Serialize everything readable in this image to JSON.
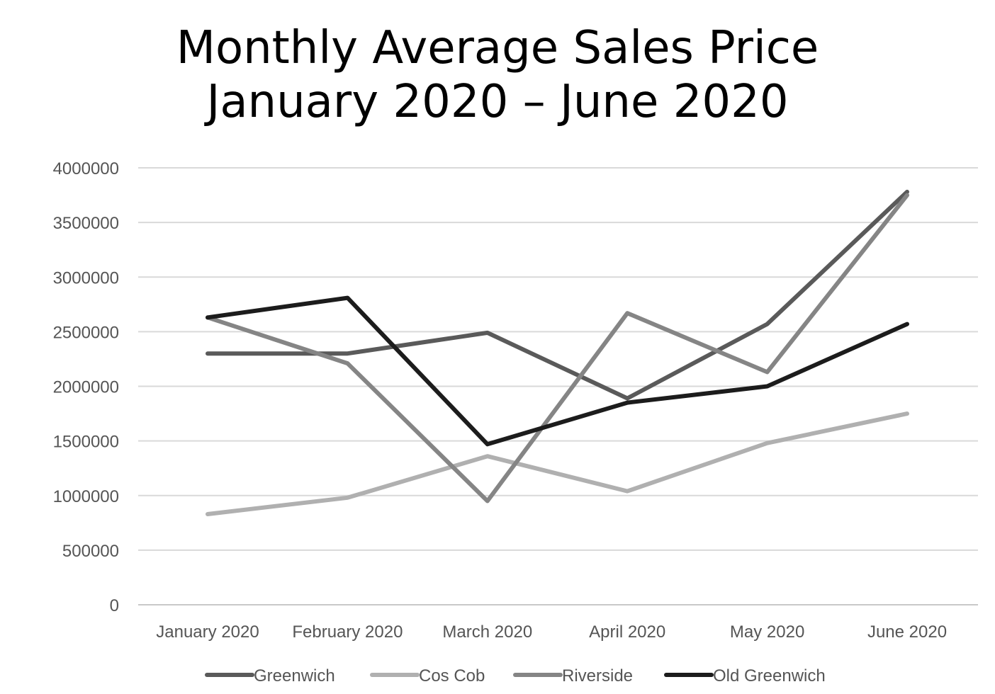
{
  "chart_data": {
    "type": "line",
    "title": "Monthly Average Sales Price",
    "subtitle": "January 2020 – June 2020",
    "xlabel": "",
    "ylabel": "",
    "categories": [
      "January 2020",
      "February 2020",
      "March 2020",
      "April 2020",
      "May 2020",
      "June 2020"
    ],
    "ylim": [
      0,
      4000000
    ],
    "yticks": [
      "0",
      "500000",
      "1000000",
      "1500000",
      "2000000",
      "2500000",
      "3000000",
      "3500000",
      "4000000"
    ],
    "grid": true,
    "legend_position": "bottom",
    "series": [
      {
        "name": "Greenwich",
        "color": "#5a5a5a",
        "values": [
          2300000,
          2300000,
          2490000,
          1890000,
          2570000,
          3780000
        ]
      },
      {
        "name": "Cos Cob",
        "color": "#b0b0b0",
        "values": [
          830000,
          980000,
          1360000,
          1040000,
          1480000,
          1750000
        ]
      },
      {
        "name": "Riverside",
        "color": "#858585",
        "values": [
          2630000,
          2210000,
          950000,
          2670000,
          2130000,
          3750000
        ]
      },
      {
        "name": "Old Greenwich",
        "color": "#1c1c1c",
        "values": [
          2630000,
          2810000,
          1470000,
          1850000,
          2000000,
          2570000
        ]
      }
    ]
  }
}
